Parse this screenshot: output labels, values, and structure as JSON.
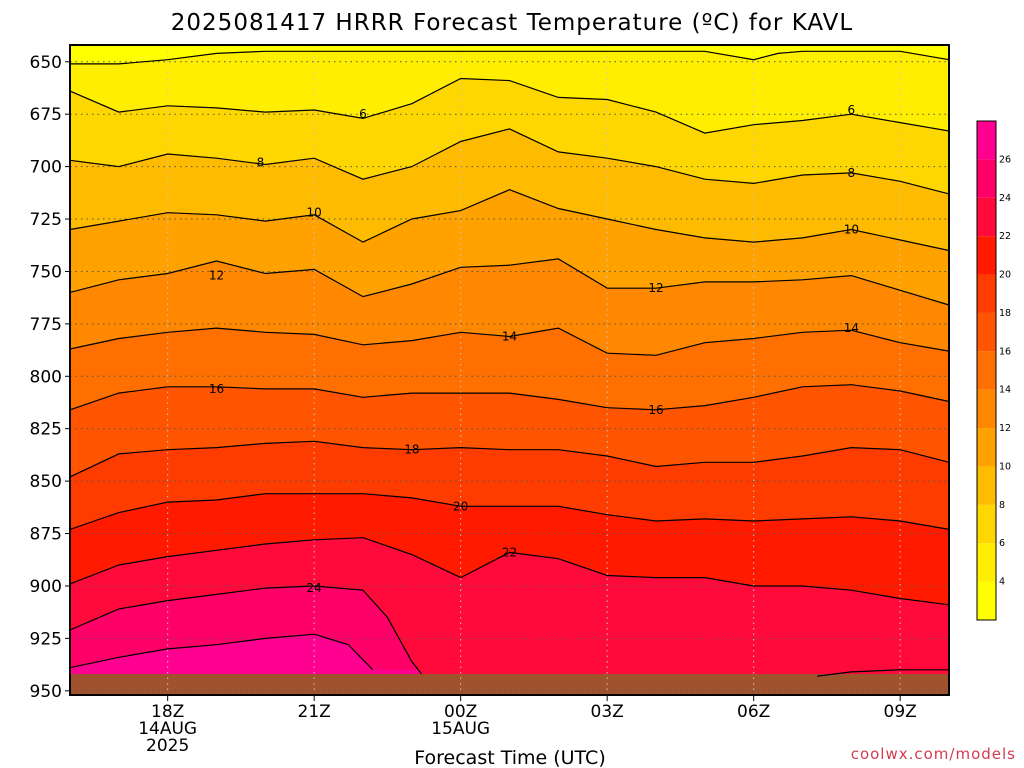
{
  "chart_data": {
    "type": "heatmap",
    "title": "2025081417 HRRR Forecast Temperature (ºC) for KAVL",
    "xlabel": "Forecast Time (UTC)",
    "ylabel": "",
    "credit": "coolwx.com/models",
    "y_axis": {
      "range": [
        952,
        642
      ],
      "ticks": [
        650,
        675,
        700,
        725,
        750,
        775,
        800,
        825,
        850,
        875,
        900,
        925,
        950
      ]
    },
    "x_axis": {
      "range_hours": [
        16.0,
        34.0
      ],
      "ticks": [
        {
          "hour": 18,
          "lines": [
            "18Z",
            "14AUG",
            "2025"
          ]
        },
        {
          "hour": 21,
          "lines": [
            "21Z"
          ]
        },
        {
          "hour": 24,
          "lines": [
            "00Z",
            "15AUG"
          ]
        },
        {
          "hour": 27,
          "lines": [
            "03Z"
          ]
        },
        {
          "hour": 30,
          "lines": [
            "06Z"
          ]
        },
        {
          "hour": 33,
          "lines": [
            "09Z"
          ]
        }
      ]
    },
    "grid": true,
    "colorbar": {
      "levels": [
        2,
        4,
        6,
        8,
        10,
        12,
        14,
        16,
        18,
        20,
        22,
        24,
        26,
        28
      ],
      "labels": [
        4,
        6,
        8,
        10,
        12,
        14,
        16,
        18,
        20,
        22,
        24,
        26
      ],
      "colors": [
        "#ffff00",
        "#ffee00",
        "#ffd700",
        "#ffbb00",
        "#ffa200",
        "#ff8800",
        "#ff7000",
        "#ff5500",
        "#ff3c00",
        "#ff1a00",
        "#ff0a3a",
        "#ff0068",
        "#ff0090"
      ],
      "placement": "right"
    },
    "contours": [
      {
        "level": 4,
        "points": [
          [
            16,
            651
          ],
          [
            17,
            651
          ],
          [
            18,
            649
          ],
          [
            19,
            646
          ],
          [
            20,
            645
          ],
          [
            21,
            645
          ],
          [
            22,
            645
          ],
          [
            23,
            645
          ],
          [
            24,
            645
          ],
          [
            25,
            645
          ],
          [
            26,
            645
          ],
          [
            27,
            645
          ],
          [
            28,
            645
          ],
          [
            29,
            645
          ],
          [
            30,
            649
          ],
          [
            30.5,
            646
          ],
          [
            31,
            645
          ],
          [
            32,
            645
          ],
          [
            33,
            645
          ],
          [
            34,
            649
          ]
        ]
      },
      {
        "level": 6,
        "points": [
          [
            16,
            664
          ],
          [
            17,
            674
          ],
          [
            18,
            671
          ],
          [
            19,
            672
          ],
          [
            20,
            674
          ],
          [
            21,
            673
          ],
          [
            22,
            677
          ],
          [
            23,
            670
          ],
          [
            24,
            658
          ],
          [
            25,
            659
          ],
          [
            26,
            667
          ],
          [
            27,
            668
          ],
          [
            28,
            674
          ],
          [
            29,
            684
          ],
          [
            30,
            680
          ],
          [
            31,
            678
          ],
          [
            32,
            675
          ],
          [
            33,
            679
          ],
          [
            34,
            683
          ]
        ]
      },
      {
        "level": 8,
        "points": [
          [
            16,
            697
          ],
          [
            17,
            700
          ],
          [
            18,
            694
          ],
          [
            19,
            696
          ],
          [
            20,
            699
          ],
          [
            21,
            696
          ],
          [
            22,
            706
          ],
          [
            23,
            700
          ],
          [
            24,
            688
          ],
          [
            25,
            682
          ],
          [
            26,
            693
          ],
          [
            27,
            696
          ],
          [
            28,
            700
          ],
          [
            29,
            706
          ],
          [
            30,
            708
          ],
          [
            31,
            704
          ],
          [
            32,
            703
          ],
          [
            33,
            707
          ],
          [
            34,
            713
          ]
        ]
      },
      {
        "level": 10,
        "points": [
          [
            16,
            730
          ],
          [
            17,
            726
          ],
          [
            18,
            722
          ],
          [
            19,
            723
          ],
          [
            20,
            726
          ],
          [
            21,
            723
          ],
          [
            22,
            736
          ],
          [
            23,
            725
          ],
          [
            24,
            721
          ],
          [
            25,
            711
          ],
          [
            26,
            720
          ],
          [
            27,
            725
          ],
          [
            28,
            730
          ],
          [
            29,
            734
          ],
          [
            30,
            736
          ],
          [
            31,
            734
          ],
          [
            32,
            730
          ],
          [
            33,
            735
          ],
          [
            34,
            740
          ]
        ]
      },
      {
        "level": 12,
        "points": [
          [
            16,
            760
          ],
          [
            17,
            754
          ],
          [
            18,
            751
          ],
          [
            19,
            745
          ],
          [
            20,
            751
          ],
          [
            21,
            749
          ],
          [
            22,
            762
          ],
          [
            23,
            756
          ],
          [
            24,
            748
          ],
          [
            25,
            747
          ],
          [
            26,
            744
          ],
          [
            27,
            758
          ],
          [
            28,
            758
          ],
          [
            29,
            755
          ],
          [
            30,
            755
          ],
          [
            31,
            754
          ],
          [
            32,
            752
          ],
          [
            33,
            759
          ],
          [
            34,
            766
          ]
        ]
      },
      {
        "level": 14,
        "points": [
          [
            16,
            787
          ],
          [
            17,
            782
          ],
          [
            18,
            779
          ],
          [
            19,
            777
          ],
          [
            20,
            779
          ],
          [
            21,
            780
          ],
          [
            22,
            785
          ],
          [
            23,
            783
          ],
          [
            24,
            779
          ],
          [
            25,
            781
          ],
          [
            26,
            777
          ],
          [
            27,
            789
          ],
          [
            28,
            790
          ],
          [
            29,
            784
          ],
          [
            30,
            782
          ],
          [
            31,
            779
          ],
          [
            32,
            778
          ],
          [
            33,
            784
          ],
          [
            34,
            788
          ]
        ]
      },
      {
        "level": 16,
        "points": [
          [
            16,
            816
          ],
          [
            17,
            808
          ],
          [
            18,
            805
          ],
          [
            19,
            805
          ],
          [
            20,
            806
          ],
          [
            21,
            806
          ],
          [
            22,
            810
          ],
          [
            23,
            808
          ],
          [
            24,
            808
          ],
          [
            25,
            808
          ],
          [
            26,
            811
          ],
          [
            27,
            815
          ],
          [
            28,
            816
          ],
          [
            29,
            814
          ],
          [
            30,
            810
          ],
          [
            31,
            805
          ],
          [
            32,
            804
          ],
          [
            33,
            807
          ],
          [
            34,
            812
          ]
        ]
      },
      {
        "level": 18,
        "points": [
          [
            16,
            848
          ],
          [
            17,
            837
          ],
          [
            18,
            835
          ],
          [
            19,
            834
          ],
          [
            20,
            832
          ],
          [
            21,
            831
          ],
          [
            22,
            834
          ],
          [
            23,
            835
          ],
          [
            24,
            834
          ],
          [
            25,
            835
          ],
          [
            26,
            835
          ],
          [
            27,
            838
          ],
          [
            28,
            843
          ],
          [
            29,
            841
          ],
          [
            30,
            841
          ],
          [
            31,
            838
          ],
          [
            32,
            834
          ],
          [
            33,
            835
          ],
          [
            34,
            841
          ]
        ]
      },
      {
        "level": 20,
        "points": [
          [
            16,
            873
          ],
          [
            17,
            865
          ],
          [
            18,
            860
          ],
          [
            19,
            859
          ],
          [
            20,
            856
          ],
          [
            21,
            856
          ],
          [
            22,
            856
          ],
          [
            23,
            858
          ],
          [
            24,
            862
          ],
          [
            25,
            862
          ],
          [
            26,
            862
          ],
          [
            27,
            866
          ],
          [
            28,
            869
          ],
          [
            29,
            868
          ],
          [
            30,
            869
          ],
          [
            31,
            868
          ],
          [
            32,
            867
          ],
          [
            33,
            869
          ],
          [
            34,
            873
          ]
        ]
      },
      {
        "level": 22,
        "points": [
          [
            16,
            899
          ],
          [
            17,
            890
          ],
          [
            18,
            886
          ],
          [
            19,
            883
          ],
          [
            20,
            880
          ],
          [
            21,
            878
          ],
          [
            22,
            877
          ],
          [
            23,
            885
          ],
          [
            24,
            896
          ],
          [
            25,
            884
          ],
          [
            26,
            887
          ],
          [
            27,
            895
          ],
          [
            28,
            896
          ],
          [
            29,
            896
          ],
          [
            30,
            900
          ],
          [
            31,
            900
          ],
          [
            32,
            902
          ],
          [
            33,
            906
          ],
          [
            34,
            909
          ]
        ]
      },
      {
        "level": 24,
        "points": [
          [
            16,
            921
          ],
          [
            17,
            911
          ],
          [
            18,
            907
          ],
          [
            19,
            904
          ],
          [
            20,
            901
          ],
          [
            21,
            900
          ],
          [
            22,
            902
          ],
          [
            22.5,
            915
          ],
          [
            23,
            936
          ],
          [
            23.2,
            942
          ]
        ]
      },
      {
        "level": 24,
        "points": [
          [
            31.3,
            943
          ],
          [
            32,
            941
          ],
          [
            33,
            940
          ],
          [
            34,
            940
          ]
        ]
      },
      {
        "level": 26,
        "points": [
          [
            16,
            939
          ],
          [
            17,
            934
          ],
          [
            18,
            930
          ],
          [
            19,
            928
          ],
          [
            20,
            925
          ],
          [
            21,
            923
          ],
          [
            21.7,
            928
          ],
          [
            22.2,
            940
          ]
        ]
      }
    ],
    "contour_labels": [
      {
        "text": "6",
        "hour": 22.0,
        "mb": 675
      },
      {
        "text": "6",
        "hour": 32.0,
        "mb": 673
      },
      {
        "text": "8",
        "hour": 19.9,
        "mb": 698
      },
      {
        "text": "8",
        "hour": 32.0,
        "mb": 703
      },
      {
        "text": "10",
        "hour": 21.0,
        "mb": 722
      },
      {
        "text": "10",
        "hour": 32.0,
        "mb": 730
      },
      {
        "text": "12",
        "hour": 19.0,
        "mb": 752
      },
      {
        "text": "12",
        "hour": 28.0,
        "mb": 758
      },
      {
        "text": "14",
        "hour": 25.0,
        "mb": 781
      },
      {
        "text": "14",
        "hour": 32.0,
        "mb": 777
      },
      {
        "text": "16",
        "hour": 19.0,
        "mb": 806
      },
      {
        "text": "16",
        "hour": 28.0,
        "mb": 816
      },
      {
        "text": "18",
        "hour": 23.0,
        "mb": 835
      },
      {
        "text": "20",
        "hour": 24.0,
        "mb": 862
      },
      {
        "text": "22",
        "hour": 25.0,
        "mb": 884
      },
      {
        "text": "24",
        "hour": 21.0,
        "mb": 901
      }
    ],
    "ground": {
      "surface_mb": 942,
      "color": "#a0522d"
    }
  }
}
